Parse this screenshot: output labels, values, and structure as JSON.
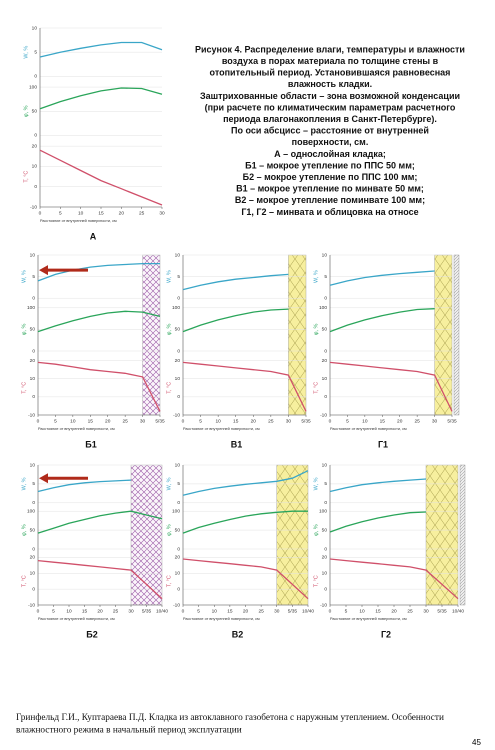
{
  "caption": [
    "Рисунок 4. Распределение влаги, температуры и влажности",
    "воздуха в порах материала по толщине стены в",
    "отопительный период. Установившаяся равновесная",
    "влажность кладки.",
    "Заштрихованные области – зона возможной конденсации",
    "(при расчете по климатическим параметрам расчетного",
    "периода влагонакопления в Санкт-Петербурге).",
    "По оси абсцисс – расстояние от внутренней",
    "поверхности, см.",
    "А – однослойная кладка;",
    "Б1 – мокрое утепление по ППС 50 мм;",
    "Б2 – мокрое утепление по ППС 100 мм;",
    "В1 – мокрое утепление по минвате 50 мм;",
    "В2 – мокрое утепление поминвате 100 мм;",
    "Г1, Г2 – минвата и облицовка на относе"
  ],
  "xlabel": "Расстояние от внутренней поверхности, см",
  "panels": [
    {
      "label": "W, %",
      "ylim": [
        0,
        10
      ],
      "yticks": [
        0,
        5,
        10
      ],
      "color": "#3aa6c8"
    },
    {
      "label": "φ, %",
      "ylim": [
        0,
        100
      ],
      "yticks": [
        0,
        50,
        100
      ],
      "color": "#2aa55a"
    },
    {
      "label": "T, °C",
      "ylim": [
        -10,
        20
      ],
      "yticks": [
        -10,
        0,
        10,
        20
      ],
      "color": "#d0506a"
    }
  ],
  "chart_data": [
    {
      "type": "line",
      "title": "А",
      "x": [
        0,
        5,
        10,
        15,
        20,
        25,
        30
      ],
      "xlim": [
        0,
        30
      ],
      "xticks": [
        0,
        5,
        10,
        15,
        20,
        25,
        30
      ],
      "series": [
        {
          "values": [
            4,
            5,
            5.8,
            6.5,
            7,
            7,
            5.5
          ]
        },
        {
          "values": [
            55,
            70,
            82,
            92,
            98,
            97,
            85
          ]
        },
        {
          "values": [
            18,
            13,
            8,
            3,
            -1,
            -5,
            -9
          ]
        }
      ]
    },
    {
      "type": "line",
      "title": "Б1",
      "x": [
        0,
        5,
        10,
        15,
        20,
        25,
        30,
        35
      ],
      "xlim": [
        0,
        35
      ],
      "xticks": [
        0,
        5,
        10,
        15,
        20,
        25,
        30,
        {
          "value": 35,
          "label": "5/35"
        }
      ],
      "insulation": {
        "x": [
          30,
          35
        ],
        "style": "hatch"
      },
      "arrow": true,
      "series": [
        {
          "values": [
            4,
            5.5,
            6.5,
            7.2,
            7.6,
            7.8,
            8,
            8
          ]
        },
        {
          "values": [
            45,
            58,
            70,
            80,
            88,
            92,
            90,
            80
          ]
        },
        {
          "values": [
            19,
            18,
            16.5,
            15,
            14,
            13,
            11,
            -8
          ]
        }
      ]
    },
    {
      "type": "line",
      "title": "В1",
      "x": [
        0,
        5,
        10,
        15,
        20,
        25,
        30,
        35
      ],
      "xlim": [
        0,
        35
      ],
      "xticks": [
        0,
        5,
        10,
        15,
        20,
        25,
        30,
        {
          "value": 35,
          "label": "5/35"
        }
      ],
      "insulation": {
        "x": [
          30,
          35
        ],
        "style": "wool"
      },
      "series": [
        {
          "values": [
            2,
            3,
            3.8,
            4.4,
            4.8,
            5.2,
            5.5,
            null
          ]
        },
        {
          "values": [
            45,
            60,
            72,
            82,
            90,
            95,
            97,
            null
          ]
        },
        {
          "values": [
            19,
            18,
            17,
            16,
            15,
            14,
            12,
            -8
          ]
        }
      ]
    },
    {
      "type": "line",
      "title": "Г1",
      "x": [
        0,
        5,
        10,
        15,
        20,
        25,
        30,
        35
      ],
      "xlim": [
        0,
        35
      ],
      "xticks": [
        0,
        5,
        10,
        15,
        20,
        25,
        30,
        {
          "value": 35,
          "label": "5/35"
        }
      ],
      "insulation": {
        "x": [
          30,
          35
        ],
        "style": "wool"
      },
      "facade": true,
      "series": [
        {
          "values": [
            3,
            4,
            4.8,
            5.3,
            5.7,
            6,
            6.3,
            null
          ]
        },
        {
          "values": [
            45,
            60,
            72,
            82,
            90,
            96,
            98,
            null
          ]
        },
        {
          "values": [
            19,
            18,
            17,
            16,
            15,
            14,
            12,
            -8
          ]
        }
      ]
    },
    {
      "type": "line",
      "title": "Б2",
      "x": [
        0,
        5,
        10,
        15,
        20,
        25,
        30,
        35,
        40
      ],
      "xlim": [
        0,
        40
      ],
      "xticks": [
        0,
        5,
        10,
        15,
        20,
        25,
        30,
        {
          "value": 35,
          "label": "5/35"
        },
        {
          "value": 40,
          "label": "10/40"
        }
      ],
      "insulation": {
        "x": [
          30,
          40
        ],
        "style": "hatch"
      },
      "arrow": true,
      "series": [
        {
          "values": [
            3,
            4,
            4.8,
            5.3,
            5.6,
            5.8,
            6,
            null,
            null
          ]
        },
        {
          "values": [
            42,
            55,
            68,
            78,
            88,
            95,
            100,
            90,
            80
          ]
        },
        {
          "values": [
            18,
            17,
            16,
            15,
            14,
            13,
            12,
            3,
            -6
          ]
        }
      ]
    },
    {
      "type": "line",
      "title": "В2",
      "x": [
        0,
        5,
        10,
        15,
        20,
        25,
        30,
        35,
        40
      ],
      "xlim": [
        0,
        40
      ],
      "xticks": [
        0,
        5,
        10,
        15,
        20,
        25,
        30,
        {
          "value": 35,
          "label": "5/35"
        },
        {
          "value": 40,
          "label": "10/40"
        }
      ],
      "insulation": {
        "x": [
          30,
          40
        ],
        "style": "wool"
      },
      "series": [
        {
          "values": [
            2,
            3,
            3.8,
            4.4,
            4.9,
            5.3,
            5.7,
            6.5,
            8.5
          ]
        },
        {
          "values": [
            42,
            57,
            68,
            78,
            87,
            93,
            97,
            100,
            100
          ]
        },
        {
          "values": [
            19,
            18,
            17,
            16,
            15,
            14,
            12,
            3,
            -6
          ]
        }
      ]
    },
    {
      "type": "line",
      "title": "Г2",
      "x": [
        0,
        5,
        10,
        15,
        20,
        25,
        30,
        35,
        40
      ],
      "xlim": [
        0,
        40
      ],
      "xticks": [
        0,
        5,
        10,
        15,
        20,
        25,
        30,
        {
          "value": 35,
          "label": "5/35"
        },
        {
          "value": 40,
          "label": "10/40"
        }
      ],
      "insulation": {
        "x": [
          30,
          40
        ],
        "style": "wool"
      },
      "facade": true,
      "series": [
        {
          "values": [
            3,
            4,
            4.8,
            5.3,
            5.7,
            6,
            6.3,
            null,
            null
          ]
        },
        {
          "values": [
            45,
            60,
            72,
            82,
            90,
            96,
            98,
            null,
            null
          ]
        },
        {
          "values": [
            19,
            18,
            17,
            16,
            15,
            14,
            12,
            3,
            -6
          ]
        }
      ]
    }
  ],
  "footer": [
    "Гринфельд Г.И., Куптараева П.Д. Кладка из автоклавного газобетона с наружным утеплением. Особенности",
    "влажностного режима в начальный период эксплуатации"
  ],
  "page_number": "45"
}
